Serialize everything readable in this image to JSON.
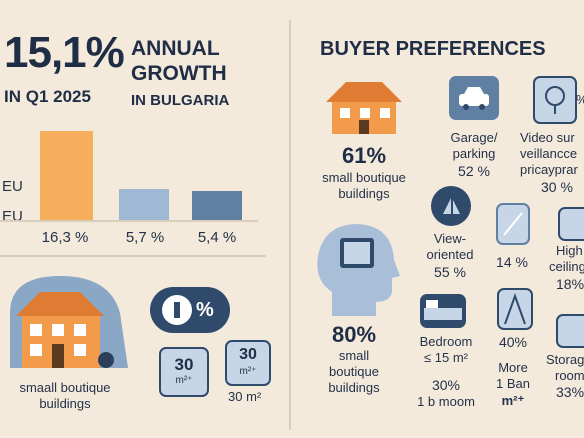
{
  "left": {
    "headline_value": "15,1%",
    "headline_title_line1": "ANNUAL",
    "headline_title_line2": "GROWTH",
    "headline_sub": "IN Q1 2025",
    "headline_sub2": "IN BULGARIA",
    "axis_labels": [
      "EU",
      "EU"
    ],
    "bottom": {
      "badge_text": "%",
      "small_card_1": "30",
      "small_card_1_unit": "m²⁺",
      "small_card_2": "30",
      "small_card_2_unit": "m²⁺",
      "area_label": "30 m²",
      "caption_line1": "smaall boutique",
      "caption_line2": "buildings"
    }
  },
  "chart_data": {
    "type": "bar",
    "categories": [
      "",
      "",
      ""
    ],
    "values": [
      16.3,
      5.7,
      5.4
    ],
    "value_labels": [
      "16,3 %",
      "5,7 %",
      "5,4 %"
    ],
    "colors": [
      "#f6ad5c",
      "#9fb8d3",
      "#5f80a3"
    ],
    "ylim": [
      0,
      18
    ]
  },
  "right": {
    "title": "BUYER PREFERENCES",
    "items": [
      {
        "label_line1": "61%",
        "label_line2": "small boutique",
        "label_line3": "buildings"
      },
      {
        "label_line1": "Garage/",
        "label_line2": "parking",
        "value": "52 %"
      },
      {
        "label_line1": "Video sur",
        "label_line2": "veillancce",
        "label_line3": "pricayprar",
        "value": "30 %"
      },
      {
        "label_line1": "View-",
        "label_line2": "oriented",
        "value": "55 %"
      },
      {
        "value": "14 %"
      },
      {
        "label_line1": "High",
        "label_line2": "ceiling",
        "value": "18%"
      },
      {
        "label_line1": "80%",
        "label_line2": "small",
        "label_line3": "boutique",
        "label_line4": "buildings"
      },
      {
        "label_line1": "Bedroom",
        "label_line2": "≤ 15 m²",
        "value": "30%",
        "value_line2": "1 b moom"
      },
      {
        "label_line1": "40%",
        "value": "More",
        "value_line2": "1 Ban",
        "value_line3": "m²⁺"
      },
      {
        "label_line1": "Storag",
        "label_line2": "room",
        "value": "33%"
      }
    ]
  }
}
